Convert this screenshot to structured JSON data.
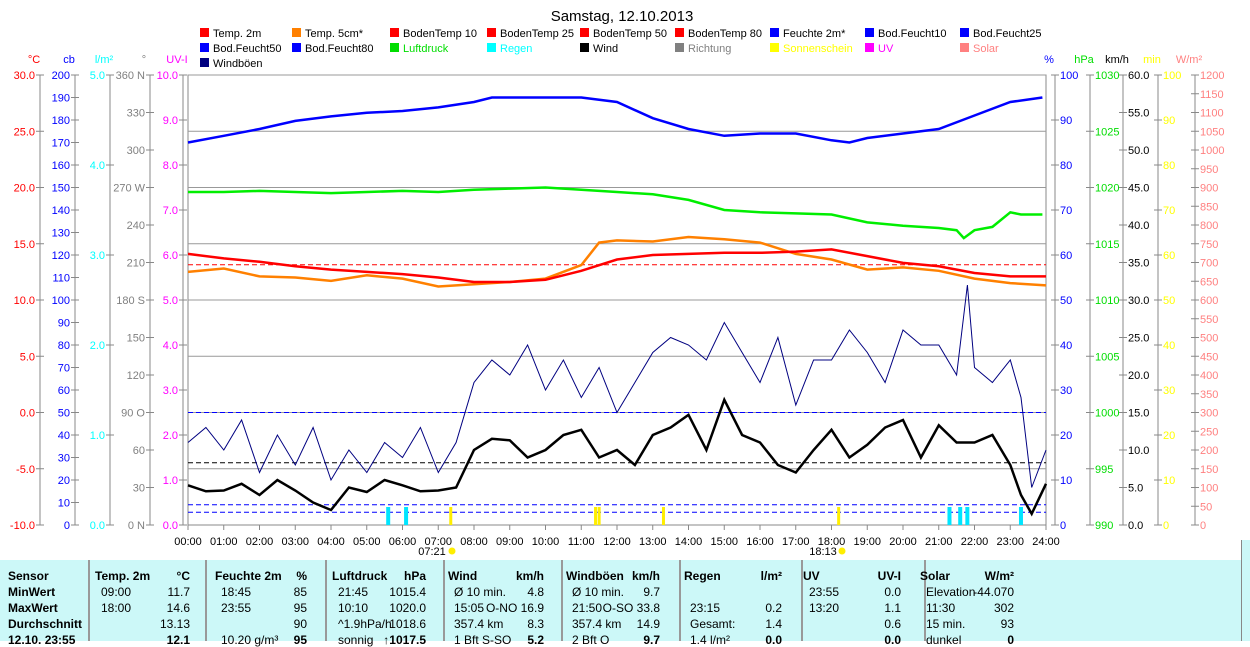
{
  "chart_data": {
    "type": "line",
    "title": "Samstag, 12.10.2013",
    "legend": [
      {
        "label": "Temp. 2m",
        "color": "#ff0000"
      },
      {
        "label": "Temp. 5cm*",
        "color": "#ff8000"
      },
      {
        "label": "BodenTemp 10",
        "color": "#ff0000"
      },
      {
        "label": "BodenTemp 25",
        "color": "#ff0000"
      },
      {
        "label": "BodenTemp 50",
        "color": "#ff0000"
      },
      {
        "label": "BodenTemp 80",
        "color": "#ff0000"
      },
      {
        "label": "Feuchte 2m*",
        "color": "#0000ff"
      },
      {
        "label": "Bod.Feucht10",
        "color": "#0000ff"
      },
      {
        "label": "Bod.Feucht25",
        "color": "#0000ff"
      },
      {
        "label": "Bod.Feucht50",
        "color": "#0000ff"
      },
      {
        "label": "Bod.Feucht80",
        "color": "#0000ff"
      },
      {
        "label": "Luftdruck",
        "color": "#00dd00"
      },
      {
        "label": "Regen",
        "color": "#00ffff"
      },
      {
        "label": "Wind",
        "color": "#000000"
      },
      {
        "label": "Richtung",
        "color": "#808080"
      },
      {
        "label": "Sonnenschein",
        "color": "#ffff00"
      },
      {
        "label": "UV",
        "color": "#ff00ff"
      },
      {
        "label": "Solar",
        "color": "#ff8080"
      },
      {
        "label": "Windböen",
        "color": "#000080"
      }
    ],
    "x_ticks": [
      "00:00",
      "01:00",
      "02:00",
      "03:00",
      "04:00",
      "05:00",
      "06:00",
      "07:00",
      "08:00",
      "09:00",
      "10:00",
      "11:00",
      "12:00",
      "13:00",
      "14:00",
      "15:00",
      "16:00",
      "17:00",
      "18:00",
      "19:00",
      "20:00",
      "21:00",
      "22:00",
      "23:00",
      "24:00"
    ],
    "sunrise": "07:21",
    "sunset": "18:13",
    "axes": [
      {
        "unit": "°C",
        "color": "#ff0000",
        "min": -10,
        "max": 30,
        "step": 5,
        "dec": 1,
        "side": "left"
      },
      {
        "unit": "cb",
        "color": "#0000ff",
        "min": 0,
        "max": 200,
        "step": 10,
        "dec": 0,
        "side": "left"
      },
      {
        "unit": "l/m²",
        "color": "#00ffff",
        "min": 0,
        "max": 5,
        "step": 1,
        "dec": 1,
        "side": "left"
      },
      {
        "unit": "°",
        "color": "#808080",
        "min": 0,
        "max": 360,
        "step": 30,
        "dec": 0,
        "side": "left",
        "dir": {
          "0": "N",
          "90": "O",
          "180": "S",
          "270": "W",
          "360": "N"
        }
      },
      {
        "unit": "UV-I",
        "color": "#ff00ff",
        "min": 0,
        "max": 10,
        "step": 1,
        "dec": 1,
        "side": "left"
      },
      {
        "unit": "%",
        "color": "#0000ff",
        "min": 0,
        "max": 100,
        "step": 10,
        "dec": 0,
        "side": "right"
      },
      {
        "unit": "hPa",
        "color": "#00dd00",
        "min": 990,
        "max": 1030,
        "step": 5,
        "dec": 0,
        "side": "right"
      },
      {
        "unit": "km/h",
        "color": "#000000",
        "min": 0,
        "max": 60,
        "step": 5,
        "dec": 1,
        "side": "right"
      },
      {
        "unit": "min",
        "color": "#ffff00",
        "min": 0,
        "max": 100,
        "step": 10,
        "dec": 0,
        "side": "right"
      },
      {
        "unit": "W/m²",
        "color": "#ff8080",
        "min": 0,
        "max": 1200,
        "step": 50,
        "dec": 0,
        "side": "right"
      }
    ],
    "series": [
      {
        "name": "Feuchte 2m",
        "axis": "%",
        "color": "#0000ff",
        "x": [
          0,
          1,
          2,
          3,
          4,
          5,
          6,
          7,
          8,
          8.5,
          11,
          12,
          13,
          14,
          15,
          16,
          17,
          18,
          18.5,
          19,
          20,
          21,
          22,
          23,
          23.9
        ],
        "y": [
          85,
          86.5,
          88,
          89.8,
          90.8,
          91.6,
          92,
          92.8,
          94,
          95,
          95,
          94,
          90.4,
          88,
          86.5,
          87,
          87,
          85.5,
          85,
          86,
          87,
          88,
          91,
          94,
          95
        ]
      },
      {
        "name": "Luftdruck",
        "axis": "hPa",
        "color": "#00ee00",
        "x": [
          0,
          1,
          2,
          3,
          4,
          5,
          6,
          7,
          8,
          9,
          10,
          11,
          12,
          13,
          14,
          15,
          16,
          17,
          18,
          19,
          20,
          21,
          21.5,
          21.7,
          22,
          22.5,
          23,
          23.3,
          23.9
        ],
        "y": [
          1019.6,
          1019.6,
          1019.7,
          1019.6,
          1019.5,
          1019.6,
          1019.7,
          1019.6,
          1019.8,
          1019.9,
          1020,
          1019.8,
          1019.6,
          1019.4,
          1018.9,
          1018,
          1017.8,
          1017.7,
          1017.6,
          1016.9,
          1016.6,
          1016.4,
          1016.2,
          1015.5,
          1016.2,
          1016.5,
          1017.8,
          1017.6,
          1017.6
        ]
      },
      {
        "name": "Temp. 5cm",
        "axis": "°C",
        "color": "#ff8000",
        "x": [
          0,
          1,
          2,
          3,
          4,
          5,
          6,
          7,
          8,
          9,
          10,
          11,
          11.5,
          12,
          13,
          14,
          15,
          16,
          17,
          18,
          19,
          20,
          21,
          22,
          23,
          24
        ],
        "y": [
          12.5,
          12.8,
          12.1,
          12,
          11.7,
          12.2,
          11.9,
          11.2,
          11.4,
          11.6,
          11.9,
          13.1,
          15.1,
          15.3,
          15.2,
          15.6,
          15.4,
          15.1,
          14.1,
          13.6,
          12.7,
          12.9,
          12.6,
          11.9,
          11.5,
          11.3
        ]
      },
      {
        "name": "Temp. 2m",
        "axis": "°C",
        "color": "#ff0000",
        "x": [
          0,
          1,
          2,
          3,
          4,
          5,
          6,
          7,
          8,
          9,
          10,
          11,
          12,
          13,
          14,
          15,
          16,
          17,
          18,
          19,
          20,
          21,
          22,
          23,
          24
        ],
        "y": [
          14.1,
          13.7,
          13.4,
          13,
          12.7,
          12.5,
          12.3,
          12,
          11.6,
          11.6,
          11.8,
          12.6,
          13.6,
          14,
          14.1,
          14.2,
          14.2,
          14.3,
          14.5,
          13.9,
          13.3,
          13,
          12.4,
          12.1,
          12.1
        ]
      },
      {
        "name": "Windböen",
        "axis": "km/h",
        "color": "#000080",
        "x": [
          0,
          0.5,
          1,
          1.5,
          2,
          2.5,
          3,
          3.5,
          4,
          4.5,
          5,
          5.5,
          6,
          6.5,
          7,
          7.5,
          8,
          8.5,
          9,
          9.5,
          10,
          10.5,
          11,
          11.5,
          12,
          12.5,
          13,
          13.5,
          14,
          14.5,
          15,
          15.5,
          16,
          16.5,
          17,
          17.5,
          18,
          18.5,
          19,
          19.5,
          20,
          20.5,
          21,
          21.5,
          21.8,
          22,
          22.5,
          23,
          23.3,
          23.6,
          24
        ],
        "y": [
          11,
          13,
          10,
          14,
          7,
          12,
          8,
          13,
          6,
          10,
          7,
          11,
          9,
          13,
          7,
          11,
          19,
          22,
          20,
          24,
          18,
          22,
          17,
          21,
          15,
          19,
          23,
          25,
          24,
          22,
          27,
          23,
          19,
          25,
          16,
          22,
          22,
          26,
          23,
          19,
          26,
          24,
          24,
          20,
          32,
          21,
          19,
          22,
          17,
          5,
          10
        ]
      },
      {
        "name": "Wind",
        "axis": "km/h",
        "color": "#000000",
        "x": [
          0,
          0.5,
          1,
          1.5,
          2,
          2.5,
          3,
          3.5,
          4,
          4.5,
          5,
          5.5,
          6,
          6.5,
          7,
          7.5,
          8,
          8.5,
          9,
          9.5,
          10,
          10.5,
          11,
          11.5,
          12,
          12.5,
          13,
          13.5,
          14,
          14.5,
          15,
          15.5,
          16,
          16.5,
          17,
          17.5,
          18,
          18.5,
          19,
          19.5,
          20,
          20.5,
          21,
          21.5,
          22,
          22.5,
          23,
          23.3,
          23.6,
          24
        ],
        "y": [
          5.3,
          4.5,
          4.6,
          5.5,
          4,
          6,
          4.6,
          3,
          2,
          5,
          4.4,
          6,
          5.3,
          4.5,
          4.6,
          5,
          10,
          11.5,
          11.3,
          9,
          10,
          12,
          12.7,
          9,
          10,
          8,
          12,
          13,
          14.7,
          10,
          16.7,
          12,
          11,
          8,
          7,
          10,
          12.7,
          9,
          10.7,
          13,
          14,
          9,
          13.3,
          11,
          11,
          12,
          8,
          4,
          1.5,
          5.5
        ]
      }
    ],
    "dashed": [
      {
        "axis": "°C",
        "value": 13.13,
        "color": "#ff0000"
      },
      {
        "axis": "km/h",
        "value": 8.3,
        "color": "#000000"
      },
      {
        "axis": "%",
        "value": 25,
        "color": "#0000ff"
      },
      {
        "axis": "km/h",
        "value": 2.7,
        "color": "#0000ff"
      },
      {
        "axis": "km/h",
        "value": 1.7,
        "color": "#0000ff"
      }
    ],
    "rain": [
      5.6,
      6.1,
      21.3,
      21.6,
      21.8,
      23.3
    ],
    "sun": [
      7.35,
      11.4,
      11.5,
      13.3,
      18.2
    ]
  },
  "table": {
    "headers": [
      [
        "Sensor",
        ""
      ],
      [
        "Temp. 2m",
        "°C"
      ],
      [
        "Feuchte 2m",
        "%"
      ],
      [
        "Luftdruck",
        "hPa"
      ],
      [
        "Wind",
        "km/h"
      ],
      [
        "Windböen",
        "km/h"
      ],
      [
        "Regen",
        "l/m²"
      ],
      [
        "UV",
        "UV-I"
      ],
      [
        "Solar",
        "W/m²"
      ]
    ],
    "rows": [
      {
        "label": "MinWert",
        "cells": [
          [
            "09:00",
            "11.7"
          ],
          [
            "18:45",
            "85"
          ],
          [
            "21:45",
            "1015.4"
          ],
          [
            "Ø 10 min.",
            "4.8"
          ],
          [
            "Ø 10 min.",
            "9.7"
          ],
          [
            "",
            ""
          ],
          [
            "23:55",
            "0.0"
          ],
          [
            "Elevation",
            "-44.070"
          ]
        ]
      },
      {
        "label": "MaxWert",
        "cells": [
          [
            "18:00",
            "14.6"
          ],
          [
            "23:55",
            "95"
          ],
          [
            "10:10",
            "1020.0"
          ],
          [
            "15:05",
            "O-NO 16.9"
          ],
          [
            "21:50",
            "O-SO 33.8"
          ],
          [
            "23:15",
            "0.2"
          ],
          [
            "13:20",
            "1.1"
          ],
          [
            "11:30",
            "302"
          ]
        ]
      },
      {
        "label": "Durchschnitt",
        "cells": [
          [
            "",
            "13.13"
          ],
          [
            "",
            "90"
          ],
          [
            "^1.9hPa/h",
            "1018.6"
          ],
          [
            "357.4 km",
            "8.3"
          ],
          [
            "357.4 km",
            "14.9"
          ],
          [
            "Gesamt:",
            "1.4"
          ],
          [
            "",
            "0.6"
          ],
          [
            "15 min.",
            "93"
          ]
        ]
      },
      {
        "label": "12.10. 23:55",
        "cells": [
          [
            "",
            "12.1"
          ],
          [
            "10.20 g/m³",
            "95"
          ],
          [
            "sonnig",
            "↑1017.5"
          ],
          [
            "1 Bft S-SO",
            "5.2"
          ],
          [
            "2 Bft O",
            "9.7"
          ],
          [
            "1.4 l/m²",
            "0.0"
          ],
          [
            "",
            "0.0"
          ],
          [
            "dunkel",
            "0"
          ]
        ]
      }
    ]
  }
}
